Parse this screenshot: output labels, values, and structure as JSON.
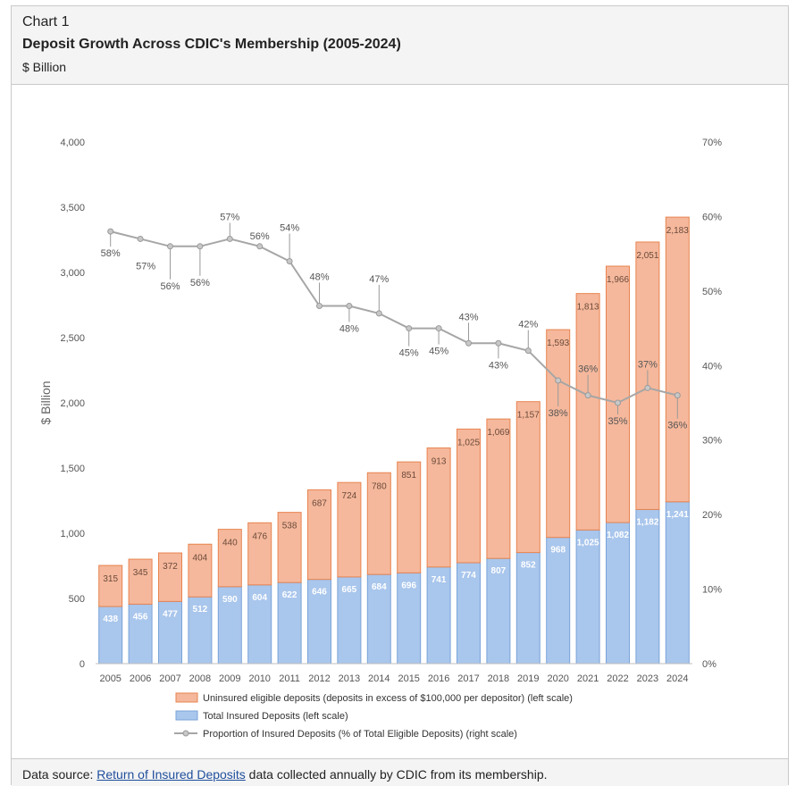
{
  "header": {
    "label": "Chart 1",
    "title": "Deposit Growth Across CDIC's Membership (2005-2024)",
    "unit": "$ Billion"
  },
  "footer": {
    "prefix": "Data source: ",
    "link_text": "Return of Insured Deposits",
    "suffix": " data collected annually by CDIC from its membership."
  },
  "colors": {
    "uninsured_fill": "#f5b89c",
    "uninsured_stroke": "#e8844f",
    "insured_fill": "#a9c6ec",
    "insured_stroke": "#7ba4d9",
    "line": "#a6a6a6"
  },
  "chart_data": {
    "type": "bar",
    "stacked": true,
    "categories": [
      "2005",
      "2006",
      "2007",
      "2008",
      "2009",
      "2010",
      "2011",
      "2012",
      "2013",
      "2014",
      "2015",
      "2016",
      "2017",
      "2018",
      "2019",
      "2020",
      "2021",
      "2022",
      "2023",
      "2024"
    ],
    "series": [
      {
        "name": "Total Insured Deposits (left scale)",
        "axis": "left",
        "values": [
          438,
          456,
          477,
          512,
          590,
          604,
          622,
          646,
          665,
          684,
          696,
          741,
          774,
          807,
          852,
          968,
          1025,
          1082,
          1182,
          1241
        ]
      },
      {
        "name": "Uninsured eligible deposits (deposits in excess of $100,000 per depositor) (left scale)",
        "axis": "left",
        "values": [
          315,
          345,
          372,
          404,
          440,
          476,
          538,
          687,
          724,
          780,
          851,
          913,
          1025,
          1069,
          1157,
          1593,
          1813,
          1966,
          2051,
          2183
        ]
      },
      {
        "name": "Proportion of Insured Deposits (% of Total Eligible Deposits) (right scale)",
        "axis": "right",
        "type": "line",
        "values": [
          58,
          57,
          56,
          56,
          57,
          56,
          54,
          48,
          48,
          47,
          45,
          45,
          43,
          43,
          42,
          38,
          36,
          35,
          37,
          36
        ]
      }
    ],
    "value_labels_left": [
      "438",
      "456",
      "477",
      "512",
      "590",
      "604",
      "622",
      "646",
      "665",
      "684",
      "696",
      "741",
      "774",
      "807",
      "852",
      "968",
      "1,025",
      "1,082",
      "1,182",
      "1,241"
    ],
    "value_labels_top": [
      "315",
      "345",
      "372",
      "404",
      "440",
      "476",
      "538",
      "687",
      "724",
      "780",
      "851",
      "913",
      "1,025",
      "1,069",
      "1,157",
      "1,593",
      "1,813",
      "1,966",
      "2,051",
      "2,183"
    ],
    "pct_labels": [
      "58%",
      "57%",
      "56%",
      "56%",
      "57%",
      "56%",
      "54%",
      "48%",
      "48%",
      "47%",
      "45%",
      "45%",
      "43%",
      "43%",
      "42%",
      "38%",
      "36%",
      "35%",
      "37%",
      "36%"
    ],
    "ylabel": "$ Billion",
    "ylim": [
      0,
      4000
    ],
    "yticks": [
      "0",
      "500",
      "1,000",
      "1,500",
      "2,000",
      "2,500",
      "3,000",
      "3,500",
      "4,000"
    ],
    "y2lim": [
      0,
      70
    ],
    "y2ticks": [
      "0%",
      "10%",
      "20%",
      "30%",
      "40%",
      "50%",
      "60%",
      "70%"
    ],
    "legend": [
      "Uninsured eligible deposits (deposits in excess of $100,000 per depositor) (left scale)",
      "Total Insured Deposits (left scale)",
      "Proportion of Insured Deposits (% of Total Eligible Deposits) (right scale)"
    ],
    "legend_position": "bottom",
    "grid": false
  }
}
